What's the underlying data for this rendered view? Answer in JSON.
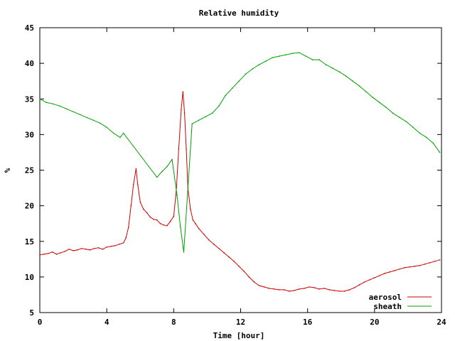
{
  "chart_data": {
    "type": "line",
    "title": "Relative humidity",
    "xlabel": "Time [hour]",
    "ylabel": "%",
    "xlim": [
      0,
      24
    ],
    "ylim": [
      5,
      45
    ],
    "xticks": [
      0,
      4,
      8,
      12,
      16,
      20,
      24
    ],
    "yticks": [
      5,
      10,
      15,
      20,
      25,
      30,
      35,
      40,
      45
    ],
    "grid": false,
    "legend_position": "bottom-right",
    "series": [
      {
        "name": "aerosol",
        "color": "#cc0000",
        "x": [
          0.0,
          0.25,
          0.5,
          0.75,
          1.0,
          1.25,
          1.5,
          1.75,
          2.0,
          2.25,
          2.5,
          2.75,
          3.0,
          3.25,
          3.5,
          3.75,
          4.0,
          4.25,
          4.5,
          4.75,
          5.0,
          5.15,
          5.3,
          5.45,
          5.6,
          5.75,
          5.85,
          6.0,
          6.2,
          6.4,
          6.6,
          6.8,
          7.0,
          7.2,
          7.4,
          7.6,
          7.8,
          8.0,
          8.15,
          8.3,
          8.45,
          8.55,
          8.65,
          8.75,
          8.85,
          9.0,
          9.15,
          9.3,
          9.5,
          9.8,
          10.1,
          10.4,
          10.7,
          11.0,
          11.3,
          11.6,
          11.9,
          12.2,
          12.5,
          12.8,
          13.1,
          13.4,
          13.7,
          14.0,
          14.3,
          14.6,
          14.9,
          15.2,
          15.5,
          15.8,
          16.1,
          16.4,
          16.7,
          17.0,
          17.3,
          17.6,
          17.9,
          18.2,
          18.5,
          18.8,
          19.1,
          19.4,
          19.7,
          20.0,
          20.3,
          20.6,
          20.9,
          21.2,
          21.5,
          21.8,
          22.1,
          22.4,
          22.7,
          23.0,
          23.3,
          23.6,
          23.9
        ],
        "y": [
          13.1,
          13.2,
          13.3,
          13.5,
          13.2,
          13.4,
          13.6,
          13.9,
          13.7,
          13.8,
          14.0,
          13.9,
          13.8,
          14.0,
          14.1,
          13.9,
          14.2,
          14.3,
          14.4,
          14.6,
          14.8,
          15.5,
          17.0,
          20.0,
          23.0,
          25.2,
          23.0,
          20.5,
          19.5,
          19.0,
          18.4,
          18.1,
          18.0,
          17.5,
          17.3,
          17.2,
          17.8,
          18.5,
          22.0,
          28.0,
          33.5,
          36.0,
          33.0,
          28.0,
          22.5,
          19.5,
          18.0,
          17.5,
          16.8,
          16.0,
          15.2,
          14.6,
          14.0,
          13.4,
          12.8,
          12.2,
          11.5,
          10.8,
          10.0,
          9.3,
          8.8,
          8.6,
          8.4,
          8.3,
          8.2,
          8.2,
          8.0,
          8.1,
          8.3,
          8.4,
          8.6,
          8.5,
          8.3,
          8.4,
          8.2,
          8.1,
          8.0,
          8.0,
          8.2,
          8.5,
          8.9,
          9.3,
          9.6,
          9.9,
          10.2,
          10.5,
          10.7,
          10.9,
          11.1,
          11.3,
          11.4,
          11.5,
          11.6,
          11.8,
          12.0,
          12.2,
          12.4
        ]
      },
      {
        "name": "sheath",
        "color": "#00a000",
        "x": [
          0.0,
          0.4,
          0.8,
          1.2,
          1.6,
          2.0,
          2.4,
          2.8,
          3.2,
          3.6,
          4.0,
          4.4,
          4.8,
          5.0,
          7.0,
          7.3,
          7.6,
          7.9,
          8.2,
          8.4,
          8.6,
          9.1,
          9.5,
          9.9,
          10.3,
          10.7,
          11.1,
          11.5,
          11.9,
          12.3,
          12.7,
          13.1,
          13.5,
          13.9,
          14.3,
          14.7,
          15.1,
          15.5,
          15.9,
          16.3,
          16.7,
          17.1,
          17.5,
          17.9,
          18.3,
          18.7,
          19.1,
          19.5,
          19.9,
          20.3,
          20.7,
          21.1,
          21.5,
          21.9,
          22.3,
          22.7,
          23.1,
          23.5,
          23.9
        ],
        "y": [
          35.0,
          34.5,
          34.3,
          34.0,
          33.6,
          33.2,
          32.8,
          32.4,
          32.0,
          31.6,
          31.0,
          30.2,
          29.6,
          30.2,
          24.0,
          24.8,
          25.5,
          26.5,
          21.5,
          17.0,
          13.5,
          31.5,
          32.0,
          32.5,
          33.0,
          34.0,
          35.5,
          36.5,
          37.5,
          38.5,
          39.2,
          39.8,
          40.3,
          40.8,
          41.0,
          41.2,
          41.4,
          41.5,
          41.0,
          40.5,
          40.5,
          39.8,
          39.3,
          38.8,
          38.2,
          37.5,
          36.8,
          36.0,
          35.2,
          34.5,
          33.8,
          33.0,
          32.4,
          31.8,
          31.0,
          30.2,
          29.6,
          28.8,
          27.5
        ]
      }
    ]
  }
}
